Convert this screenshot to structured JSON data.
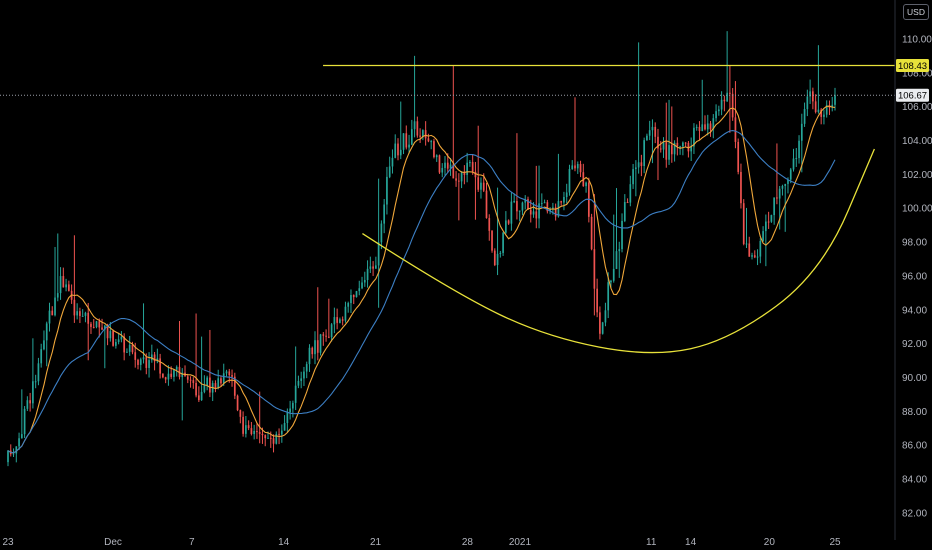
{
  "currency": "USD",
  "colors": {
    "background": "#000000",
    "up": "#26a69a",
    "down": "#ef5350",
    "ma_fast": "#f0a73a",
    "ma_slow": "#3c7fc4",
    "annotation": "#e8e23a",
    "price_line": "#9a9ea8",
    "axis_text": "#b2b5be"
  },
  "chart_data": {
    "type": "candlestick",
    "price_axis": {
      "ticks": [
        82.0,
        84.0,
        86.0,
        88.0,
        90.0,
        92.0,
        94.0,
        96.0,
        98.0,
        100.0,
        102.0,
        104.0,
        106.0,
        108.0,
        110.0
      ],
      "labels": [
        "82.00",
        "84.00",
        "86.00",
        "88.00",
        "90.00",
        "92.00",
        "94.00",
        "96.00",
        "98.00",
        "100.00",
        "102.00",
        "104.00",
        "106.00",
        "108.00",
        "110.00"
      ],
      "range": [
        80.4,
        112.3
      ]
    },
    "time_axis": {
      "labels": [
        "23",
        "Dec",
        "7",
        "14",
        "21",
        "28",
        "2021",
        "11",
        "14",
        "20",
        "25"
      ]
    },
    "resistance_level": {
      "value": 108.43,
      "label": "108.43"
    },
    "last_price": {
      "value": 106.67,
      "label": "106.67"
    },
    "series": [
      {
        "role": "price",
        "style": "candles"
      },
      {
        "role": "moving-average-fast",
        "style": "line"
      },
      {
        "role": "moving-average-slow",
        "style": "line"
      }
    ],
    "anchors": [
      {
        "date": "2020-11-23",
        "price": 85.0
      },
      {
        "date": "2020-11-25",
        "price": 90.0
      },
      {
        "date": "2020-11-27",
        "price": 96.5
      },
      {
        "date": "2020-11-28",
        "price": 93.5
      },
      {
        "date": "2020-11-30",
        "price": 93.0
      },
      {
        "date": "2020-12-02",
        "price": 91.5
      },
      {
        "date": "2020-12-04",
        "price": 91.0
      },
      {
        "date": "2020-12-06",
        "price": 90.2
      },
      {
        "date": "2020-12-08",
        "price": 89.0
      },
      {
        "date": "2020-12-10",
        "price": 89.8
      },
      {
        "date": "2020-12-11",
        "price": 87.0
      },
      {
        "date": "2020-12-13",
        "price": 86.5
      },
      {
        "date": "2020-12-14",
        "price": 87.5
      },
      {
        "date": "2020-12-16",
        "price": 91.5
      },
      {
        "date": "2020-12-18",
        "price": 93.5
      },
      {
        "date": "2020-12-20",
        "price": 95.5
      },
      {
        "date": "2020-12-21",
        "price": 96.5
      },
      {
        "date": "2020-12-22",
        "price": 103.0
      },
      {
        "date": "2020-12-24",
        "price": 105.0
      },
      {
        "date": "2020-12-26",
        "price": 102.5
      },
      {
        "date": "2020-12-28",
        "price": 102.5
      },
      {
        "date": "2020-12-29",
        "price": 101.5
      },
      {
        "date": "2020-12-30",
        "price": 96.0
      },
      {
        "date": "2020-12-31",
        "price": 100.0
      },
      {
        "date": "2021-01-02",
        "price": 100.0
      },
      {
        "date": "2021-01-04",
        "price": 100.0
      },
      {
        "date": "2021-01-05",
        "price": 103.0
      },
      {
        "date": "2021-01-06",
        "price": 101.5
      },
      {
        "date": "2021-01-07",
        "price": 92.0
      },
      {
        "date": "2021-01-08",
        "price": 96.5
      },
      {
        "date": "2021-01-09",
        "price": 100.5
      },
      {
        "date": "2021-01-11",
        "price": 105.0
      },
      {
        "date": "2021-01-12",
        "price": 103.5
      },
      {
        "date": "2021-01-13",
        "price": 103.5
      },
      {
        "date": "2021-01-15",
        "price": 105.0
      },
      {
        "date": "2021-01-17",
        "price": 107.0
      },
      {
        "date": "2021-01-18",
        "price": 98.0
      },
      {
        "date": "2021-01-19",
        "price": 97.0
      },
      {
        "date": "2021-01-20",
        "price": 100.0
      },
      {
        "date": "2021-01-21",
        "price": 101.5
      },
      {
        "date": "2021-01-22",
        "price": 103.5
      },
      {
        "date": "2021-01-23",
        "price": 106.5
      },
      {
        "date": "2021-01-24",
        "price": 105.5
      },
      {
        "date": "2021-01-25",
        "price": 106.6
      }
    ],
    "annotations": [
      {
        "type": "horizontal-line",
        "value": 108.43,
        "from_date": "2020-12-17",
        "to_date": "2021-01-27"
      },
      {
        "type": "arc",
        "color": "annotation",
        "points": [
          {
            "date": "2020-12-20",
            "price": 98.5
          },
          {
            "date": "2020-12-27",
            "price": 95.0
          },
          {
            "date": "2021-01-03",
            "price": 92.4
          },
          {
            "date": "2021-01-11",
            "price": 91.2
          },
          {
            "date": "2021-01-17",
            "price": 92.2
          },
          {
            "date": "2021-01-24",
            "price": 96.2
          },
          {
            "date": "2021-01-28",
            "price": 103.5
          }
        ]
      }
    ]
  }
}
